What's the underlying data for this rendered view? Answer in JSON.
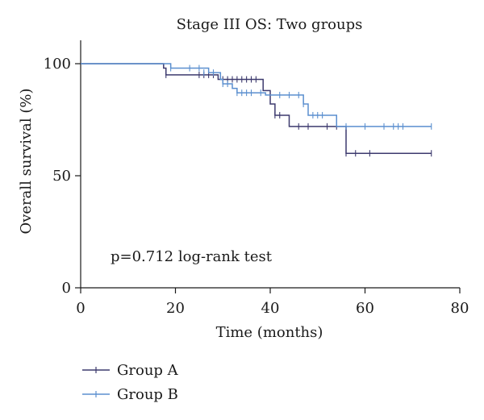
{
  "chart_data": {
    "type": "line",
    "title": "Stage III OS: Two groups",
    "xlabel": "Time (months)",
    "ylabel": "Overall survival (%)",
    "xlim": [
      0,
      80
    ],
    "ylim": [
      0,
      100
    ],
    "xticks": [
      "0",
      "20",
      "40",
      "60",
      "80"
    ],
    "yticks": [
      "0",
      "50",
      "100"
    ],
    "grid": false,
    "legend_position": "bottom-left",
    "annotation": "p=0.712 log-rank test",
    "series": [
      {
        "name": "Group A",
        "color": "#3d3a6e",
        "steps": [
          [
            0,
            100
          ],
          [
            17,
            100
          ],
          [
            17.5,
            98
          ],
          [
            18,
            95
          ],
          [
            28,
            95
          ],
          [
            29,
            93
          ],
          [
            38,
            93
          ],
          [
            38.5,
            88
          ],
          [
            40,
            82
          ],
          [
            41,
            77
          ],
          [
            43,
            77
          ],
          [
            44,
            72
          ],
          [
            56,
            72
          ],
          [
            56,
            60
          ],
          [
            74,
            60
          ]
        ],
        "censored": [
          [
            18,
            95
          ],
          [
            25,
            95
          ],
          [
            26,
            95
          ],
          [
            27,
            95
          ],
          [
            28,
            95
          ],
          [
            30,
            93
          ],
          [
            31,
            93
          ],
          [
            32,
            93
          ],
          [
            33,
            93
          ],
          [
            34,
            93
          ],
          [
            35,
            93
          ],
          [
            36,
            93
          ],
          [
            37,
            93
          ],
          [
            41,
            77
          ],
          [
            42,
            77
          ],
          [
            46,
            72
          ],
          [
            48,
            72
          ],
          [
            52,
            72
          ],
          [
            54,
            72
          ],
          [
            56,
            60
          ],
          [
            58,
            60
          ],
          [
            61,
            60
          ],
          [
            74,
            60
          ]
        ]
      },
      {
        "name": "Group B",
        "color": "#5b8fcf",
        "steps": [
          [
            0,
            100
          ],
          [
            19,
            100
          ],
          [
            19,
            98
          ],
          [
            27,
            98
          ],
          [
            27,
            96
          ],
          [
            29,
            96
          ],
          [
            29.5,
            93
          ],
          [
            30,
            91
          ],
          [
            32,
            91
          ],
          [
            32,
            89
          ],
          [
            33,
            87
          ],
          [
            39,
            87
          ],
          [
            39,
            86
          ],
          [
            47,
            86
          ],
          [
            47,
            82
          ],
          [
            48,
            82
          ],
          [
            48,
            77
          ],
          [
            54,
            77
          ],
          [
            54,
            72
          ],
          [
            74,
            72
          ]
        ],
        "censored": [
          [
            19,
            98
          ],
          [
            23,
            98
          ],
          [
            25,
            98
          ],
          [
            26,
            96
          ],
          [
            28,
            96
          ],
          [
            30,
            91
          ],
          [
            31,
            91
          ],
          [
            33,
            87
          ],
          [
            34,
            87
          ],
          [
            35,
            87
          ],
          [
            36,
            87
          ],
          [
            38,
            87
          ],
          [
            42,
            86
          ],
          [
            44,
            86
          ],
          [
            46,
            86
          ],
          [
            47,
            82
          ],
          [
            49,
            77
          ],
          [
            50,
            77
          ],
          [
            51,
            77
          ],
          [
            56,
            72
          ],
          [
            60,
            72
          ],
          [
            64,
            72
          ],
          [
            66,
            72
          ],
          [
            67,
            72
          ],
          [
            68,
            72
          ],
          [
            74,
            72
          ]
        ]
      }
    ]
  }
}
